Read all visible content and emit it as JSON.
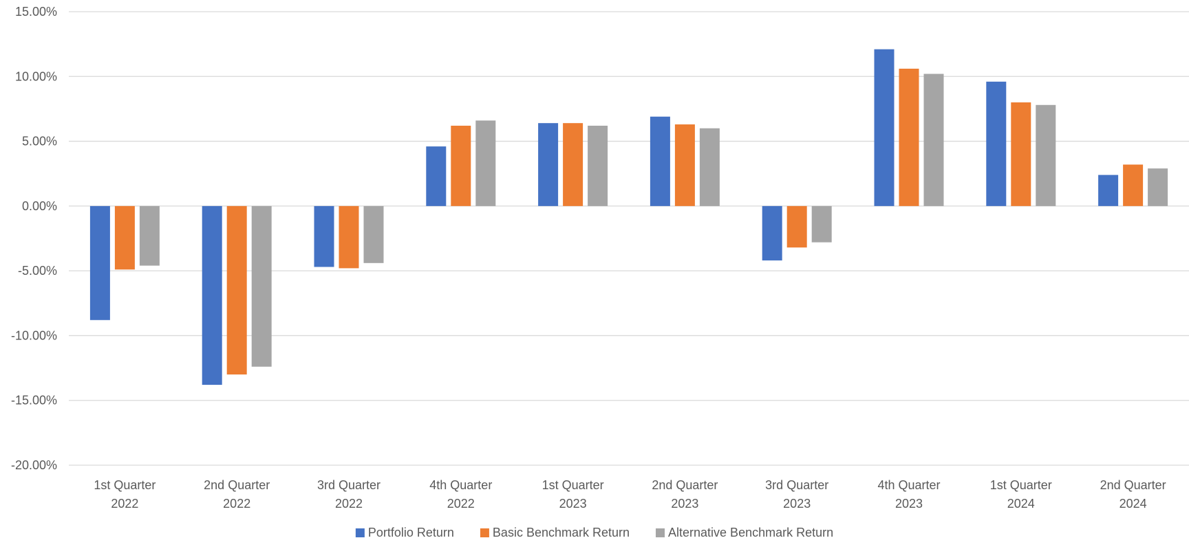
{
  "chart_data": {
    "type": "bar",
    "title": "",
    "xlabel": "",
    "ylabel": "",
    "ylim": [
      -0.2,
      0.15
    ],
    "ytick_step": 0.05,
    "y_format": "percent_2dp",
    "grid": true,
    "legend_position": "bottom",
    "categories": [
      [
        "1st Quarter",
        "2022"
      ],
      [
        "2nd Quarter",
        "2022"
      ],
      [
        "3rd Quarter",
        "2022"
      ],
      [
        "4th Quarter",
        "2022"
      ],
      [
        "1st Quarter",
        "2023"
      ],
      [
        "2nd Quarter",
        "2023"
      ],
      [
        "3rd Quarter",
        "2023"
      ],
      [
        "4th Quarter",
        "2023"
      ],
      [
        "1st Quarter",
        "2024"
      ],
      [
        "2nd Quarter",
        "2024"
      ]
    ],
    "series": [
      {
        "name": "Portfolio Return",
        "color": "#4472C4",
        "values": [
          -0.088,
          -0.138,
          -0.047,
          0.046,
          0.064,
          0.069,
          -0.042,
          0.121,
          0.096,
          0.024
        ]
      },
      {
        "name": "Basic Benchmark Return",
        "color": "#ED7D31",
        "values": [
          -0.049,
          -0.13,
          -0.048,
          0.062,
          0.064,
          0.063,
          -0.032,
          0.106,
          0.08,
          0.032
        ]
      },
      {
        "name": "Alternative Benchmark Return",
        "color": "#A5A5A5",
        "values": [
          -0.046,
          -0.124,
          -0.044,
          0.066,
          0.062,
          0.06,
          -0.028,
          0.102,
          0.078,
          0.029
        ]
      }
    ]
  }
}
